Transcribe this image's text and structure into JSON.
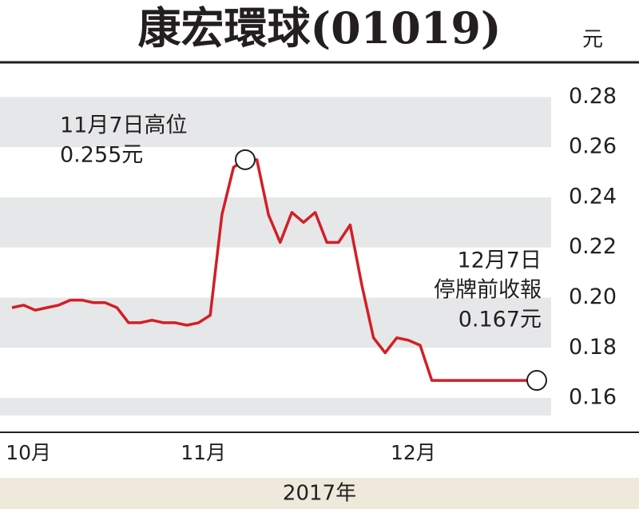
{
  "chart_data": {
    "type": "line",
    "title": "康宏環球(01019)",
    "unit": "元",
    "x_title": "2017年",
    "categories": [
      null,
      "10月",
      null,
      null,
      null,
      null,
      null,
      null,
      null,
      null,
      null,
      null,
      null,
      null,
      null,
      null,
      "11月",
      null,
      null,
      null,
      null,
      null,
      null,
      null,
      null,
      null,
      null,
      null,
      null,
      null,
      null,
      null,
      null,
      null,
      "12月",
      null,
      null,
      null,
      null,
      null,
      null,
      null,
      null,
      null,
      null,
      null
    ],
    "series": [
      {
        "name": "康宏環球",
        "color": "#d21f26",
        "values": [
          0.196,
          0.197,
          0.195,
          0.196,
          0.197,
          0.199,
          0.199,
          0.198,
          0.198,
          0.196,
          0.19,
          0.19,
          0.191,
          0.19,
          0.19,
          0.189,
          0.19,
          0.193,
          0.233,
          0.252,
          0.255,
          0.255,
          0.233,
          0.222,
          0.234,
          0.23,
          0.234,
          0.222,
          0.222,
          0.229,
          0.205,
          0.184,
          0.178,
          0.184,
          0.183,
          0.181,
          0.167,
          0.167,
          0.167,
          0.167,
          0.167,
          0.167,
          0.167,
          0.167,
          0.167,
          0.167
        ]
      }
    ],
    "ylim": [
      0.153,
      0.29
    ],
    "yticks": [
      0.16,
      0.18,
      {
        "value": 0.2,
        "label": "0.20"
      },
      0.22,
      0.24,
      0.26,
      0.28
    ],
    "annotations": [
      {
        "index": 20,
        "lines": [
          "11月7日高位",
          "0.255元"
        ]
      },
      {
        "index": 45,
        "lines": [
          "12月7日",
          "停牌前收報",
          "0.167元"
        ]
      }
    ]
  }
}
